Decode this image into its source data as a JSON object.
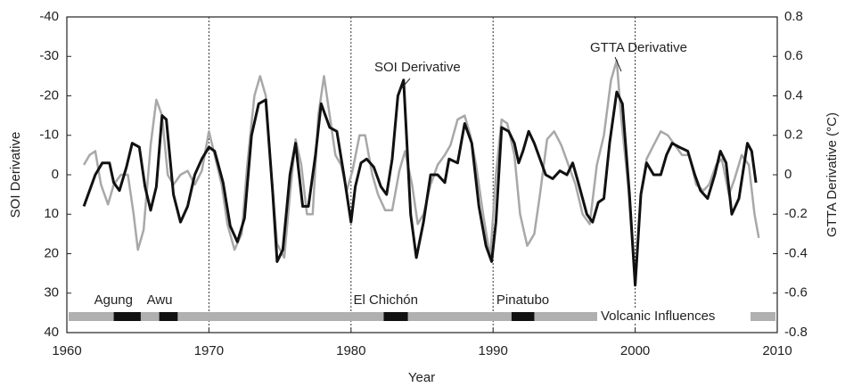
{
  "chart_data": {
    "type": "line",
    "ylabel": "SOI Derivative",
    "y2label": "GTTA Derivative (°C)",
    "xlabel": "Year",
    "xlim": [
      1960,
      2010
    ],
    "xticks": [
      1960,
      1970,
      1980,
      1990,
      2000,
      2010
    ],
    "xgrid": true,
    "ylim": [
      40,
      -40
    ],
    "yticks": [
      -40,
      -30,
      -20,
      -10,
      0,
      10,
      20,
      30,
      40
    ],
    "y2lim": [
      -0.8,
      0.8
    ],
    "y2ticks": [
      0.8,
      0.6,
      0.4,
      0.2,
      0,
      -0.2,
      -0.4,
      -0.6,
      -0.8
    ],
    "series": [
      {
        "name": "GTTA Derivative",
        "color": "#a8a8a8",
        "axis": "y2",
        "x": [
          1961.2,
          1961.6,
          1962.0,
          1962.4,
          1962.9,
          1963.3,
          1963.8,
          1964.3,
          1964.7,
          1965.0,
          1965.4,
          1965.9,
          1966.3,
          1966.7,
          1967.1,
          1967.5,
          1968.0,
          1968.5,
          1969.0,
          1969.5,
          1970.0,
          1970.4,
          1970.9,
          1971.3,
          1971.8,
          1972.3,
          1972.7,
          1973.2,
          1973.6,
          1974.0,
          1974.4,
          1974.8,
          1975.3,
          1975.7,
          1976.1,
          1976.5,
          1976.9,
          1977.3,
          1977.7,
          1978.1,
          1978.5,
          1978.9,
          1979.3,
          1979.7,
          1980.1,
          1980.6,
          1981.0,
          1981.5,
          1981.9,
          1982.4,
          1982.9,
          1983.4,
          1983.8,
          1984.3,
          1984.7,
          1985.1,
          1985.6,
          1986.1,
          1986.6,
          1987.0,
          1987.5,
          1988.0,
          1988.4,
          1988.8,
          1989.3,
          1989.8,
          1990.2,
          1990.6,
          1991.0,
          1991.5,
          1991.9,
          1992.4,
          1992.9,
          1993.3,
          1993.8,
          1994.3,
          1994.8,
          1995.3,
          1995.8,
          1996.3,
          1996.8,
          1997.3,
          1997.8,
          1998.3,
          1998.7,
          1999.0,
          1999.5,
          2000.0,
          2000.4,
          2000.8,
          2001.3,
          2001.8,
          2002.3,
          2002.8,
          2003.3,
          2003.8,
          2004.3,
          2004.8,
          2005.2,
          2005.7,
          2006.1,
          2006.6,
          2007.0,
          2007.5,
          2008.0,
          2008.4,
          2008.7
        ],
        "values": [
          0.05,
          0.1,
          0.12,
          -0.05,
          -0.15,
          -0.05,
          0.0,
          0.0,
          -0.2,
          -0.38,
          -0.28,
          0.15,
          0.38,
          0.3,
          0.0,
          -0.05,
          0.0,
          0.02,
          -0.05,
          0.02,
          0.22,
          0.1,
          -0.05,
          -0.25,
          -0.38,
          -0.3,
          0.05,
          0.4,
          0.5,
          0.4,
          0.0,
          -0.35,
          -0.42,
          -0.1,
          0.18,
          0.05,
          -0.2,
          -0.2,
          0.3,
          0.5,
          0.3,
          0.1,
          0.05,
          -0.08,
          0.02,
          0.2,
          0.2,
          0.0,
          -0.1,
          -0.18,
          -0.18,
          0.02,
          0.12,
          -0.05,
          -0.25,
          -0.2,
          -0.05,
          0.05,
          0.1,
          0.15,
          0.28,
          0.3,
          0.2,
          0.05,
          -0.2,
          -0.42,
          0.0,
          0.28,
          0.26,
          0.1,
          -0.2,
          -0.36,
          -0.3,
          -0.1,
          0.18,
          0.22,
          0.15,
          0.05,
          -0.05,
          -0.2,
          -0.25,
          0.05,
          0.2,
          0.48,
          0.58,
          0.3,
          -0.05,
          -0.55,
          -0.1,
          0.08,
          0.15,
          0.22,
          0.2,
          0.15,
          0.1,
          0.1,
          -0.05,
          -0.08,
          -0.05,
          0.05,
          0.08,
          -0.1,
          -0.02,
          0.1,
          0.05,
          -0.2,
          -0.32
        ]
      },
      {
        "name": "SOI Derivative",
        "color": "#111111",
        "axis": "y",
        "x": [
          1961.2,
          1962.0,
          1962.5,
          1963.0,
          1963.3,
          1963.7,
          1964.2,
          1964.6,
          1965.1,
          1965.5,
          1965.9,
          1966.3,
          1966.7,
          1967.0,
          1967.5,
          1968.0,
          1968.5,
          1969.0,
          1969.5,
          1970.0,
          1970.4,
          1971.0,
          1971.5,
          1972.0,
          1972.5,
          1973.0,
          1973.5,
          1974.0,
          1974.5,
          1974.8,
          1975.2,
          1975.7,
          1976.1,
          1976.6,
          1977.0,
          1977.5,
          1977.9,
          1978.5,
          1979.0,
          1979.5,
          1980.0,
          1980.3,
          1980.7,
          1981.1,
          1981.6,
          1982.1,
          1982.5,
          1982.9,
          1983.3,
          1983.7,
          1984.2,
          1984.6,
          1985.1,
          1985.6,
          1986.1,
          1986.6,
          1986.9,
          1987.5,
          1988.0,
          1988.5,
          1989.0,
          1989.5,
          1989.9,
          1990.2,
          1990.6,
          1991.1,
          1991.5,
          1991.8,
          1992.1,
          1992.5,
          1992.9,
          1993.3,
          1993.7,
          1994.2,
          1994.7,
          1995.2,
          1995.6,
          1996.0,
          1996.6,
          1997.0,
          1997.4,
          1997.8,
          1998.2,
          1998.7,
          1999.1,
          1999.6,
          2000.0,
          2000.4,
          2000.8,
          2001.3,
          2001.8,
          2002.2,
          2002.6,
          2003.1,
          2003.7,
          2004.2,
          2004.6,
          2005.1,
          2005.6,
          2006.0,
          2006.4,
          2006.8,
          2007.3,
          2007.9,
          2008.2,
          2008.5
        ],
        "values": [
          8,
          0,
          -3,
          -3,
          2,
          4,
          -2,
          -8,
          -7,
          3,
          9,
          3,
          -15,
          -14,
          5,
          12,
          8,
          0,
          -4,
          -7,
          -6,
          2,
          13,
          17,
          11,
          -10,
          -18,
          -19,
          5,
          22,
          19,
          0,
          -8,
          8,
          8,
          -5,
          -18,
          -12,
          -11,
          0,
          12,
          3,
          -3,
          -4,
          -2,
          3,
          5,
          -4,
          -20,
          -24,
          10,
          21,
          12,
          0,
          0,
          2,
          -4,
          -3,
          -13,
          -8,
          8,
          18,
          22,
          12,
          -12,
          -11,
          -8,
          -3,
          -6,
          -11,
          -8,
          -4,
          0,
          1,
          -1,
          0,
          -3,
          2,
          10,
          12,
          7,
          6,
          -8,
          -21,
          -18,
          5,
          28,
          5,
          -3,
          0,
          0,
          -5,
          -8,
          -7,
          -6,
          0,
          4,
          6,
          0,
          -6,
          -3,
          10,
          6,
          -8,
          -6,
          2
        ]
      }
    ],
    "band": {
      "label": "Volcanic Influences",
      "color": "#b0b0b0"
    },
    "annotations": [
      {
        "label": "Agung",
        "start": 1963.3,
        "end": 1965.2
      },
      {
        "label": "Awu",
        "start": 1966.5,
        "end": 1967.8
      },
      {
        "label": "El Chichón",
        "start": 1982.3,
        "end": 1984.0
      },
      {
        "label": "Pinatubo",
        "start": 1991.3,
        "end": 1992.9
      }
    ]
  }
}
